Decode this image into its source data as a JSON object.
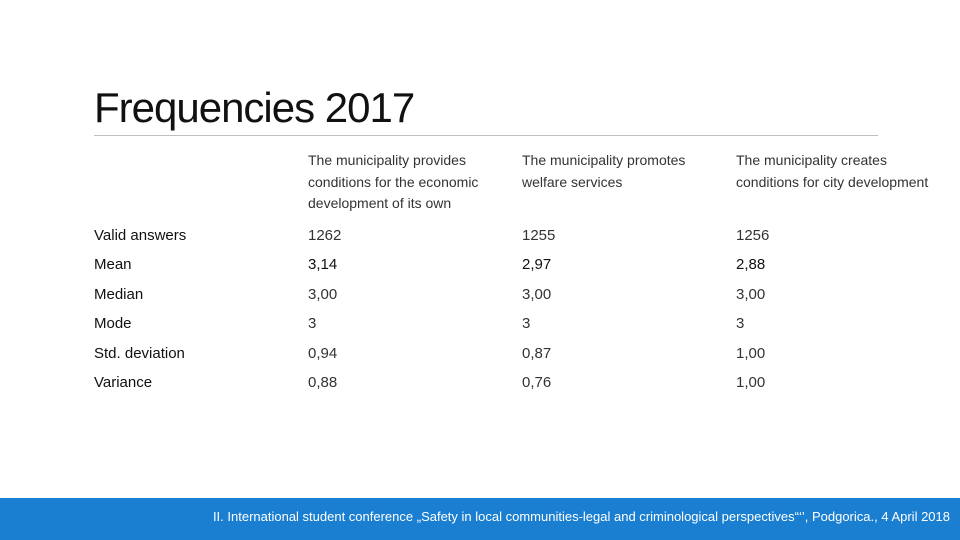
{
  "title": "Frequencies 2017",
  "table": {
    "headers": [
      "",
      "The municipality provides conditions for the economic development of its own",
      "The municipality promotes welfare services",
      "The municipality creates conditions for city development"
    ],
    "rows": [
      {
        "label": "Valid answers",
        "values": [
          "1262",
          "1255",
          "1256"
        ]
      },
      {
        "label": "Mean",
        "values": [
          "3,14",
          "2,97",
          "2,88"
        ]
      },
      {
        "label": "Median",
        "values": [
          "3,00",
          "3,00",
          "3,00"
        ]
      },
      {
        "label": "Mode",
        "values": [
          "3",
          "3",
          "3"
        ]
      },
      {
        "label": "Std. deviation",
        "values": [
          "0,94",
          "0,87",
          "1,00"
        ]
      },
      {
        "label": "Variance",
        "values": [
          "0,88",
          "0,76",
          "1,00"
        ]
      }
    ]
  },
  "footer": "II. International student conference  „Safety in local communities-legal and criminological perspectives“‘’, Podgorica., 4 April 2018",
  "colors": {
    "footer_bar": "#1a7fd1",
    "title_rule": "#bfbfbf"
  }
}
